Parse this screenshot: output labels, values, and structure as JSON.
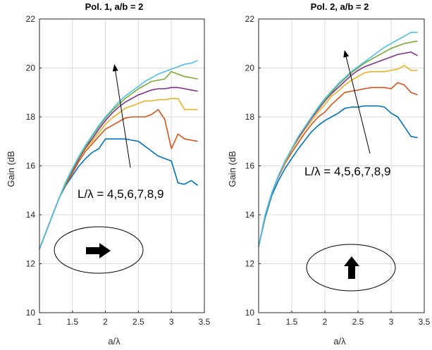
{
  "chart_data": [
    {
      "type": "line",
      "title": "Pol. 1, a/b = 2",
      "xlabel": "a/λ",
      "ylabel": "Gain (dB",
      "xlim": [
        1,
        3.5
      ],
      "ylim": [
        10,
        22
      ],
      "xticks": [
        "1",
        "1.5",
        "2",
        "2.5",
        "3",
        "3.5"
      ],
      "yticks": [
        "10",
        "12",
        "14",
        "16",
        "18",
        "20",
        "22"
      ],
      "grid": true,
      "annotation": "L/λ = 4,5,6,7,8,9",
      "inset_arrow": "right",
      "colors": [
        "#0072BD",
        "#D95319",
        "#EDB120",
        "#7E2F8E",
        "#77AC30",
        "#4DBEEE"
      ],
      "x": [
        1.0,
        1.1,
        1.2,
        1.3,
        1.4,
        1.5,
        1.6,
        1.7,
        1.8,
        1.9,
        2.0,
        2.1,
        2.2,
        2.3,
        2.4,
        2.5,
        2.6,
        2.7,
        2.8,
        2.9,
        3.0,
        3.1,
        3.2,
        3.3,
        3.4
      ],
      "series": [
        {
          "values": [
            12.6,
            13.3,
            14.0,
            14.7,
            15.2,
            15.6,
            16.0,
            16.3,
            16.55,
            16.7,
            17.1,
            17.1,
            17.1,
            17.1,
            17.05,
            17.0,
            16.8,
            16.6,
            16.4,
            16.3,
            16.2,
            15.3,
            15.25,
            15.4,
            15.2
          ]
        },
        {
          "values": [
            12.6,
            13.3,
            14.0,
            14.7,
            15.25,
            15.7,
            16.2,
            16.6,
            16.9,
            17.2,
            17.5,
            17.65,
            17.8,
            17.95,
            18.0,
            18.0,
            18.0,
            18.1,
            18.3,
            17.9,
            16.7,
            17.3,
            17.1,
            17.05,
            17.0
          ]
        },
        {
          "values": [
            12.6,
            13.3,
            14.0,
            14.7,
            15.3,
            15.8,
            16.3,
            16.7,
            17.0,
            17.35,
            17.7,
            17.95,
            18.15,
            18.35,
            18.45,
            18.55,
            18.65,
            18.65,
            18.7,
            18.7,
            18.75,
            18.75,
            18.3,
            18.3,
            18.3
          ]
        },
        {
          "values": [
            12.6,
            13.3,
            14.0,
            14.7,
            15.3,
            15.8,
            16.3,
            16.75,
            17.1,
            17.5,
            17.85,
            18.15,
            18.4,
            18.6,
            18.75,
            18.9,
            19.0,
            19.1,
            19.15,
            19.15,
            19.2,
            19.2,
            19.15,
            19.1,
            19.05
          ]
        },
        {
          "values": [
            12.6,
            13.3,
            14.0,
            14.7,
            15.3,
            15.85,
            16.35,
            16.8,
            17.2,
            17.6,
            17.95,
            18.25,
            18.5,
            18.75,
            18.95,
            19.15,
            19.3,
            19.45,
            19.5,
            19.55,
            19.85,
            19.75,
            19.65,
            19.6,
            19.55
          ]
        },
        {
          "values": [
            12.6,
            13.3,
            14.0,
            14.7,
            15.35,
            15.9,
            16.4,
            16.85,
            17.25,
            17.65,
            18.0,
            18.3,
            18.6,
            18.85,
            19.05,
            19.25,
            19.45,
            19.6,
            19.75,
            19.85,
            19.95,
            20.05,
            20.15,
            20.2,
            20.3
          ]
        }
      ]
    },
    {
      "type": "line",
      "title": "Pol. 2, a/b = 2",
      "xlabel": "a/λ",
      "ylabel": "Gain (dB",
      "xlim": [
        1,
        3.5
      ],
      "ylim": [
        10,
        22
      ],
      "xticks": [
        "1",
        "1.5",
        "2",
        "2.5",
        "3",
        "3.5"
      ],
      "yticks": [
        "10",
        "12",
        "14",
        "16",
        "18",
        "20",
        "22"
      ],
      "grid": true,
      "annotation": "L/λ = 4,5,6,7,8,9",
      "inset_arrow": "up",
      "colors": [
        "#0072BD",
        "#D95319",
        "#EDB120",
        "#7E2F8E",
        "#77AC30",
        "#4DBEEE"
      ],
      "x": [
        1.0,
        1.1,
        1.2,
        1.3,
        1.4,
        1.5,
        1.6,
        1.7,
        1.8,
        1.9,
        2.0,
        2.1,
        2.2,
        2.3,
        2.4,
        2.5,
        2.6,
        2.7,
        2.8,
        2.9,
        3.0,
        3.1,
        3.2,
        3.3,
        3.4
      ],
      "series": [
        {
          "values": [
            12.7,
            13.9,
            14.8,
            15.4,
            15.9,
            16.3,
            16.7,
            17.05,
            17.4,
            17.65,
            17.85,
            18.0,
            18.15,
            18.35,
            18.4,
            18.4,
            18.45,
            18.45,
            18.45,
            18.4,
            18.15,
            18.0,
            17.6,
            17.2,
            17.15
          ]
        },
        {
          "values": [
            12.7,
            14.0,
            14.9,
            15.55,
            16.1,
            16.55,
            16.95,
            17.35,
            17.7,
            18.0,
            18.2,
            18.5,
            18.75,
            19.0,
            19.05,
            19.1,
            19.15,
            19.2,
            19.2,
            19.2,
            19.15,
            19.4,
            19.3,
            19.0,
            18.9
          ]
        },
        {
          "values": [
            12.7,
            14.0,
            14.9,
            15.6,
            16.15,
            16.65,
            17.1,
            17.5,
            17.85,
            18.2,
            18.5,
            18.85,
            19.05,
            19.3,
            19.5,
            19.65,
            19.8,
            19.85,
            19.85,
            19.85,
            19.9,
            19.95,
            20.1,
            19.9,
            19.9
          ]
        },
        {
          "values": [
            12.7,
            14.0,
            14.9,
            15.6,
            16.2,
            16.7,
            17.15,
            17.55,
            17.95,
            18.3,
            18.65,
            18.95,
            19.2,
            19.45,
            19.7,
            19.9,
            20.05,
            20.15,
            20.25,
            20.35,
            20.45,
            20.55,
            20.6,
            20.65,
            20.5
          ]
        },
        {
          "values": [
            12.7,
            14.0,
            14.9,
            15.6,
            16.2,
            16.7,
            17.2,
            17.6,
            18.0,
            18.35,
            18.7,
            19.0,
            19.3,
            19.55,
            19.8,
            20.0,
            20.2,
            20.35,
            20.5,
            20.65,
            20.8,
            20.9,
            21.0,
            21.05,
            21.1
          ]
        },
        {
          "values": [
            12.7,
            14.0,
            14.9,
            15.6,
            16.2,
            16.7,
            17.2,
            17.6,
            18.0,
            18.4,
            18.75,
            19.05,
            19.35,
            19.6,
            19.85,
            20.05,
            20.25,
            20.45,
            20.65,
            20.85,
            21.0,
            21.15,
            21.3,
            21.45,
            21.45
          ]
        }
      ]
    }
  ]
}
